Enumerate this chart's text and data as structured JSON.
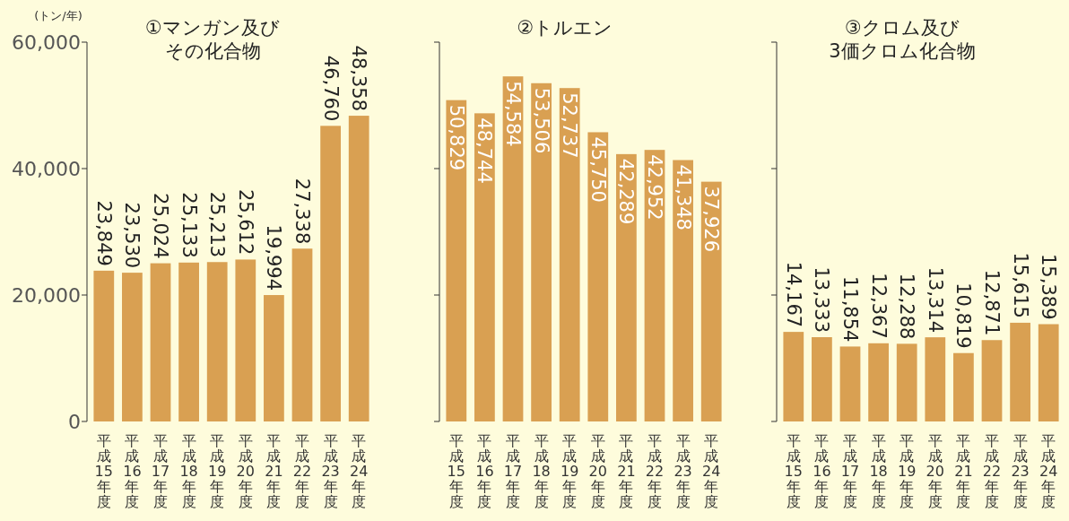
{
  "chart_data": [
    {
      "type": "bar",
      "title": "①マンガン及び",
      "subtitle": "その化合物",
      "ylabel": "(トン/年)",
      "categories": [
        "平成15年度",
        "平成16年度",
        "平成17年度",
        "平成18年度",
        "平成19年度",
        "平成20年度",
        "平成21年度",
        "平成22年度",
        "平成23年度",
        "平成24年度"
      ],
      "values": [
        23849,
        23530,
        25024,
        25133,
        25213,
        25612,
        19994,
        27338,
        46760,
        48358
      ],
      "value_labels": [
        "23,849",
        "23,530",
        "25,024",
        "25,133",
        "25,213",
        "25,612",
        "19,994",
        "27,338",
        "46,760",
        "48,358"
      ],
      "color": "#d9a052",
      "ylim": [
        0,
        60000
      ],
      "yticks": [
        0,
        {
          "value": 20000,
          "label": "20,000"
        },
        {
          "value": 40000,
          "label": "40,000"
        },
        {
          "value": 60000,
          "label": "60,000"
        }
      ]
    },
    {
      "type": "bar",
      "title": "②トルエン",
      "categories": [
        "平成15年度",
        "平成16年度",
        "平成17年度",
        "平成18年度",
        "平成19年度",
        "平成20年度",
        "平成21年度",
        "平成22年度",
        "平成23年度",
        "平成24年度"
      ],
      "values": [
        50829,
        48744,
        54584,
        53506,
        52737,
        45750,
        42289,
        42952,
        41348,
        37926
      ],
      "value_labels": [
        "50,829",
        "48,744",
        "54,584",
        "53,506",
        "52,737",
        "45,750",
        "42,289",
        "42,952",
        "41,348",
        "37,926"
      ],
      "color": "#d9a052",
      "ylim": [
        0,
        60000
      ],
      "yticks": [
        {
          "value": 0,
          "label": null
        },
        {
          "value": 20000,
          "label": null
        },
        {
          "value": 40000,
          "label": null
        },
        {
          "value": 60000,
          "label": null
        }
      ],
      "tick_labels": "x"
    },
    {
      "type": "bar",
      "title": "③クロム及び",
      "subtitle": "3価クロム化合物",
      "categories": [
        "平成15年度",
        "平成16年度",
        "平成17年度",
        "平成18年度",
        "平成19年度",
        "平成20年度",
        "平成21年度",
        "平成22年度",
        "平成23年度",
        "平成24年度"
      ],
      "values": [
        14167,
        13333,
        11854,
        12367,
        12288,
        13314,
        10819,
        12871,
        15615,
        15389
      ],
      "value_labels": [
        "14,167",
        "13,333",
        "11,854",
        "12,367",
        "12,288",
        "13,314",
        "10,819",
        "12,871",
        "15,615",
        "15,389"
      ],
      "color": "#d9a052",
      "ylim": [
        0,
        60000
      ],
      "yticks": [
        {
          "value": 0,
          "label": null
        },
        {
          "value": 20000,
          "label": null
        },
        {
          "value": 40000,
          "label": null
        },
        {
          "value": 60000,
          "label": null
        }
      ],
      "tick_labels": "x"
    }
  ]
}
